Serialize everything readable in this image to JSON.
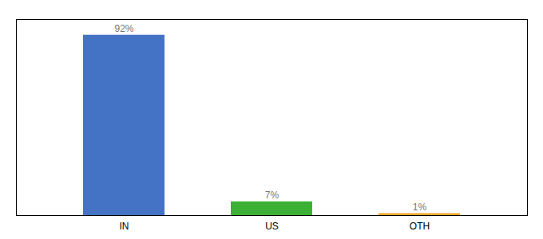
{
  "chart_data": {
    "type": "bar",
    "categories": [
      "IN",
      "US",
      "OTH"
    ],
    "values": [
      92,
      7,
      1
    ],
    "value_labels": [
      "92%",
      "7%",
      "1%"
    ],
    "colors": [
      "#4472c4",
      "#3cb034",
      "#f5a623"
    ],
    "ylim": [
      0,
      100
    ],
    "data_labels": true,
    "tick_labels": "x"
  }
}
